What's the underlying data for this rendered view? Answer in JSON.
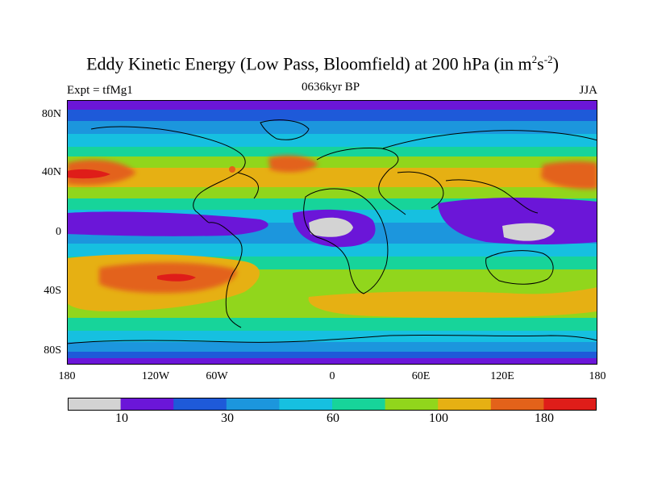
{
  "title": {
    "main": "Eddy Kinetic Energy (Low Pass, Bloomfield) at 200 hPa (in m",
    "sup1": "2",
    "mid": "s",
    "sup2": "-2",
    "end": ")"
  },
  "subtitle": {
    "left": "Expt = tfMg1",
    "center": "0636kyr BP",
    "right": "JJA"
  },
  "axes": {
    "lat_labels": [
      "80N",
      "40N",
      "0",
      "40S",
      "80S"
    ],
    "lon_labels": [
      "180",
      "120W",
      "60W",
      "0",
      "60E",
      "120E",
      "180"
    ]
  },
  "colorbar": {
    "colors": [
      "#d3d3d3",
      "#6b16d8",
      "#1e5ad9",
      "#1c96dd",
      "#16c0e0",
      "#17d49a",
      "#91d61c",
      "#e6b013",
      "#e3621a",
      "#df1d19"
    ],
    "labels": [
      "10",
      "30",
      "60",
      "100",
      "180"
    ]
  },
  "map": {
    "projection": "cylindrical-equidistant",
    "field": "eddy kinetic energy",
    "coastlines": true
  }
}
